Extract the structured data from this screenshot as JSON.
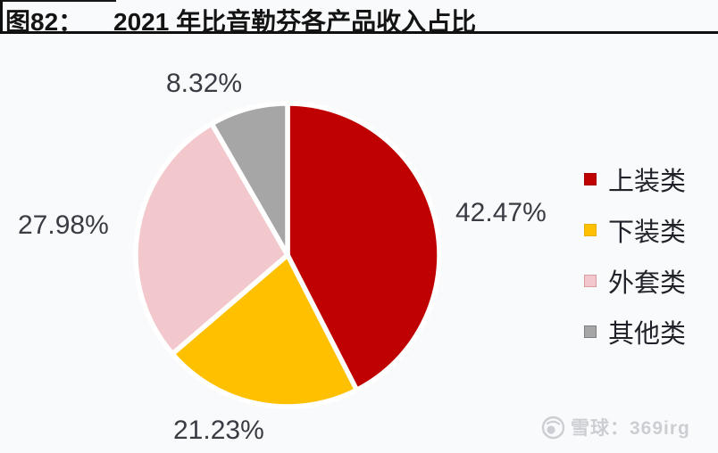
{
  "header": {
    "figure_label": "图82：",
    "title": "2021 年比音勒芬各产品收入占比"
  },
  "chart_data": {
    "type": "pie",
    "title": "2021 年比音勒芬各产品收入占比",
    "categories": [
      "上装类",
      "下装类",
      "外套类",
      "其他类"
    ],
    "values": [
      42.47,
      21.23,
      27.98,
      8.32
    ],
    "labels": [
      "42.47%",
      "21.23%",
      "27.98%",
      "8.32%"
    ],
    "colors": [
      "#c00101",
      "#ffc000",
      "#f2c8cd",
      "#a6a6a6"
    ],
    "start_angle_deg": 0,
    "direction": "clockwise",
    "legend_position": "right",
    "slice_border_color": "#ffffff"
  },
  "legend": {
    "swatch_border_colors": [
      "#a50006",
      "#e8ae00",
      "#d99aa2",
      "#7f7f7f"
    ]
  },
  "watermark": {
    "text": "雪球：369irg"
  },
  "icons": {
    "watermark_logo": "snowball-circle-icon"
  },
  "colors": {
    "background": "#f9fafb",
    "title_text": "#141414",
    "title_rule": "#0f0f0f",
    "percent_label_text": "#393c43",
    "legend_text": "#1f2228",
    "watermark_gray": "#cbced3"
  }
}
